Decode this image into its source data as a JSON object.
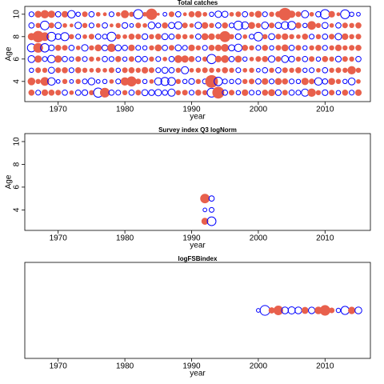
{
  "chart_data": [
    {
      "type": "bubble",
      "title": "Total catches",
      "xlabel": "year",
      "ylabel": "Age",
      "xlim": [
        1965,
        2016.8
      ],
      "xticks": [
        1970,
        1980,
        1990,
        2000,
        2010
      ],
      "ylim": [
        2.2,
        10.7
      ],
      "yticks": [
        4,
        6,
        8,
        10
      ],
      "positive_color": "#e8604c",
      "negative_color": "#0000ff",
      "x": [
        1966,
        1967,
        1968,
        1969,
        1970,
        1971,
        1972,
        1973,
        1974,
        1975,
        1976,
        1977,
        1978,
        1979,
        1980,
        1981,
        1982,
        1983,
        1984,
        1985,
        1986,
        1987,
        1988,
        1989,
        1990,
        1991,
        1992,
        1993,
        1994,
        1995,
        1996,
        1997,
        1998,
        1999,
        2000,
        2001,
        2002,
        2003,
        2004,
        2005,
        2006,
        2007,
        2008,
        2009,
        2010,
        2011,
        2012,
        2013,
        2014,
        2015
      ],
      "y": [
        3,
        4,
        5,
        6,
        7,
        8,
        9,
        10
      ],
      "values": [
        [
          0.6,
          -0.5,
          0.7,
          0.6,
          0.5,
          -0.6,
          0.3,
          -0.6,
          -0.7,
          0.4,
          -1.8,
          1.7,
          -0.6,
          -0.5,
          0.4,
          -0.6,
          0.5,
          -0.8,
          -0.7,
          -0.9,
          -0.6,
          -1.1,
          0.4,
          0.5,
          -0.5,
          0.6,
          0.4,
          -1.7,
          2.6,
          -0.6,
          0.5,
          -0.4,
          0.7,
          -0.5,
          -0.4,
          0.6,
          0.8,
          -0.7,
          0.5,
          -0.6,
          -0.5,
          -1.1,
          1.2,
          0.4,
          -0.7,
          0.5,
          -0.4,
          0.6,
          -0.5,
          0.7
        ],
        [
          1.0,
          0.4,
          1.3,
          -1.2,
          -0.3,
          0.4,
          -0.3,
          0.4,
          -0.5,
          -1.0,
          -0.3,
          -0.4,
          0.3,
          -0.5,
          1.2,
          1.8,
          0.5,
          -0.4,
          0.3,
          -1.1,
          -1.4,
          -1.3,
          0.4,
          -0.4,
          -0.7,
          0.4,
          -0.5,
          3.0,
          -1.5,
          -0.5,
          -0.4,
          -0.6,
          0.4,
          0.5,
          -0.6,
          0.7,
          -0.5,
          0.8,
          0.6,
          -0.5,
          -0.4,
          0.9,
          0.5,
          -1.2,
          -0.6,
          0.8,
          0.4,
          -0.4,
          -1.0,
          0.3
        ],
        [
          -0.4,
          0.5,
          0.4,
          -0.8,
          0.5,
          0.6,
          -0.5,
          0.6,
          0.4,
          0.3,
          0.4,
          0.3,
          0.5,
          -0.4,
          0.5,
          0.6,
          0.4,
          0.7,
          0.5,
          -0.5,
          -0.8,
          -0.6,
          0.4,
          -1.1,
          0.3,
          0.4,
          0.5,
          0.4,
          0.3,
          0.6,
          0.4,
          -0.5,
          0.3,
          0.4,
          -0.3,
          -0.6,
          0.4,
          -0.6,
          0.5,
          0.4,
          0.6,
          -0.4,
          -0.5,
          0.3,
          -0.6,
          0.4,
          0.5,
          0.4,
          1.2,
          0.4
        ],
        [
          -1.0,
          0.9,
          -0.5,
          -1.2,
          0.9,
          -0.6,
          -0.4,
          0.5,
          -0.5,
          0.4,
          0.3,
          -0.6,
          -0.5,
          0.6,
          -0.4,
          0.5,
          -0.7,
          -0.6,
          0.4,
          -0.5,
          0.3,
          -0.6,
          1.0,
          0.9,
          0.6,
          -0.5,
          0.4,
          -1.8,
          0.7,
          1.0,
          -0.6,
          0.8,
          -0.4,
          0.3,
          0.5,
          0.6,
          -0.9,
          0.5,
          -1.0,
          -0.7,
          0.4,
          -0.6,
          0.5,
          -0.4,
          0.6,
          0.4,
          -0.7,
          0.5,
          0.4,
          -0.6
        ],
        [
          -1.4,
          1.7,
          -1.5,
          -0.7,
          0.6,
          0.5,
          -0.6,
          0.3,
          -0.9,
          0.4,
          0.8,
          -0.7,
          1.2,
          -0.8,
          -0.6,
          0.7,
          -0.5,
          -0.4,
          0.4,
          0.8,
          -0.6,
          0.5,
          -0.8,
          -0.5,
          0.7,
          0.4,
          -0.5,
          0.6,
          0.7,
          1.0,
          -0.8,
          -1.2,
          0.6,
          0.4,
          -0.5,
          0.6,
          -0.4,
          0.5,
          0.8,
          -0.6,
          0.5,
          -0.4,
          0.4,
          0.6,
          -0.5,
          0.4,
          0.7,
          0.4,
          0.5,
          0.6
        ],
        [
          0.9,
          2.4,
          1.3,
          -1.6,
          -0.7,
          -1.4,
          0.4,
          -0.5,
          0.3,
          0.5,
          -0.6,
          -0.5,
          -1.7,
          0.4,
          0.3,
          0.6,
          0.5,
          -0.7,
          0.4,
          0.6,
          -0.8,
          -0.6,
          0.5,
          0.4,
          0.3,
          -0.6,
          0.8,
          0.7,
          0.5,
          2.2,
          0.4,
          -0.7,
          0.3,
          -0.5,
          -1.6,
          0.4,
          -0.8,
          0.5,
          0.7,
          0.4,
          0.3,
          0.6,
          -0.5,
          0.4,
          -0.6,
          0.5,
          -0.9,
          0.7,
          0.4,
          0.5
        ],
        [
          -0.6,
          0.4,
          -1.6,
          0.5,
          -0.8,
          0.3,
          0.2,
          -0.9,
          0.4,
          -0.5,
          0.3,
          -0.6,
          0.2,
          0.4,
          -0.7,
          -0.3,
          0.5,
          0.3,
          -1.0,
          -0.5,
          0.6,
          -0.8,
          -1.1,
          0.5,
          0.3,
          -0.9,
          0.7,
          0.4,
          -0.6,
          0.6,
          -0.5,
          -1.6,
          -1.1,
          0.8,
          0.4,
          -1.0,
          0.5,
          -0.8,
          -1.2,
          -1.4,
          0.6,
          -0.4,
          1.3,
          0.4,
          -0.8,
          0.3,
          -0.6,
          0.5,
          0.4,
          0.6
        ],
        [
          -0.5,
          0.8,
          1.2,
          0.9,
          -0.6,
          0.7,
          -1.2,
          -0.4,
          0.5,
          -0.6,
          0.3,
          0.2,
          -0.5,
          0.3,
          1.1,
          0.4,
          -1.8,
          0.3,
          2.3,
          0.1,
          -0.3,
          0.5,
          -0.6,
          0.2,
          0.6,
          0.7,
          0.3,
          -0.4,
          -0.9,
          -0.8,
          0.3,
          0.5,
          -0.6,
          0.4,
          0.8,
          -0.5,
          0.4,
          0.6,
          3.0,
          0.9,
          0.5,
          -1.1,
          0.3,
          -0.6,
          -1.8,
          0.7,
          0.2,
          -1.7,
          -0.4,
          -0.3
        ]
      ]
    },
    {
      "type": "bubble",
      "title": "Survey index Q3 logNorm",
      "xlabel": "year",
      "ylabel": "Age",
      "xlim": [
        1965,
        2016.8
      ],
      "xticks": [
        1970,
        1980,
        1990,
        2000,
        2010
      ],
      "ylim": [
        2.2,
        10.7
      ],
      "yticks": [
        4,
        6,
        8,
        10
      ],
      "positive_color": "#e8604c",
      "negative_color": "#0000ff",
      "x": [
        1992,
        1993
      ],
      "y": [
        3,
        4,
        5
      ],
      "values": [
        [
          0.8,
          -1.6
        ],
        [
          -0.3,
          -0.5
        ],
        [
          1.6,
          -0.6
        ]
      ]
    },
    {
      "type": "bubble",
      "title": "logFSBindex",
      "xlabel": "year",
      "xlim": [
        1965,
        2016.8
      ],
      "xticks": [
        1970,
        1980,
        1990,
        2000,
        2010
      ],
      "positive_color": "#e8604c",
      "negative_color": "#0000ff",
      "x": [
        2000,
        2001,
        2002,
        2003,
        2004,
        2005,
        2006,
        2007,
        2008,
        2009,
        2010,
        2011,
        2012,
        2013,
        2014,
        2015
      ],
      "values": [
        -0.3,
        -2.0,
        0.6,
        1.6,
        -1.0,
        -1.1,
        -1.0,
        0.8,
        -0.9,
        1.0,
        2.0,
        0.5,
        -0.4,
        -1.4,
        0.9,
        -1.0
      ]
    }
  ]
}
